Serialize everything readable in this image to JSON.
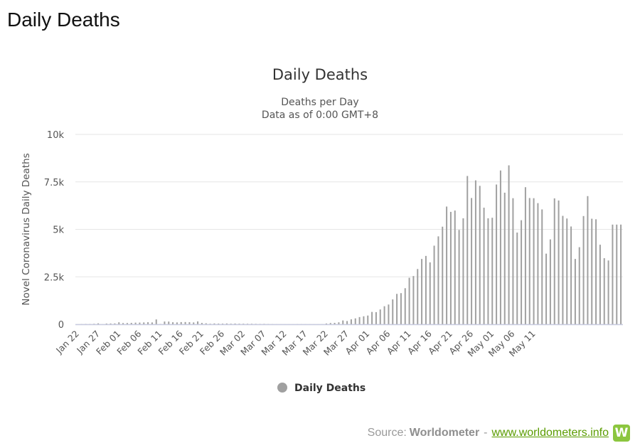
{
  "page": {
    "heading": "Daily Deaths"
  },
  "source": {
    "prefix": "Source:",
    "brand": "Worldometer",
    "separator": "-",
    "link_text": "www.worldometers.info",
    "logo_glyph": "W",
    "logo_color": "#8cc63f"
  },
  "chart_data": {
    "type": "bar",
    "title": "Daily Deaths",
    "subtitle_lines": [
      "Deaths per Day",
      "Data as of 0:00 GMT+8"
    ],
    "ylabel": "Novel Coronavirus Daily Deaths",
    "xlabel": "",
    "ylim": [
      0,
      10000
    ],
    "yticks": [
      {
        "value": 0,
        "label": "0"
      },
      {
        "value": 2500,
        "label": "2.5k"
      },
      {
        "value": 5000,
        "label": "5k"
      },
      {
        "value": 7500,
        "label": "7.5k"
      },
      {
        "value": 10000,
        "label": "10k"
      }
    ],
    "xtick_labels": [
      "Jan 22",
      "Jan 27",
      "Feb 01",
      "Feb 06",
      "Feb 11",
      "Feb 16",
      "Feb 21",
      "Feb 26",
      "Mar 02",
      "Mar 07",
      "Mar 12",
      "Mar 17",
      "Mar 22",
      "Mar 27",
      "Apr 01",
      "Apr 06",
      "Apr 11",
      "Apr 16",
      "Apr 21",
      "Apr 26",
      "May 01",
      "May 06",
      "May 11"
    ],
    "xtick_every": 5,
    "grid": true,
    "legend": {
      "position": "bottom-center",
      "entries": [
        "Daily Deaths"
      ]
    },
    "bar_color": "#a0a0a0",
    "series": [
      {
        "name": "Daily Deaths",
        "values": [
          0,
          8,
          16,
          14,
          26,
          49,
          2,
          38,
          42,
          46,
          103,
          64,
          66,
          73,
          86,
          89,
          97,
          108,
          97,
          254,
          13,
          143,
          142,
          106,
          98,
          115,
          118,
          109,
          97,
          150,
          71,
          52,
          29,
          44,
          37,
          35,
          42,
          31,
          38,
          31,
          30,
          28,
          27,
          22,
          17,
          22,
          11,
          7,
          3,
          1,
          1,
          2,
          1,
          6,
          5,
          3,
          2,
          2,
          1,
          2,
          41,
          67,
          75,
          103,
          201,
          170,
          260,
          310,
          380,
          420,
          460,
          650,
          640,
          780,
          950,
          1040,
          1310,
          1600,
          1640,
          1900,
          2450,
          2540,
          2910,
          3440,
          3600,
          3260,
          4140,
          4630,
          5140,
          6200,
          5920,
          5990,
          4970,
          5580,
          7810,
          6650,
          7580,
          7290,
          6140,
          5580,
          5610,
          7360,
          8100,
          6930,
          8370,
          6640,
          4830,
          5480,
          7220,
          6650,
          6640,
          6380,
          6050,
          3720,
          4470,
          6630,
          6520,
          5710,
          5570,
          5150,
          3440,
          4060,
          5700,
          6750,
          5560,
          5530,
          4190,
          3480,
          3360,
          5250,
          5250,
          5250
        ]
      }
    ]
  }
}
